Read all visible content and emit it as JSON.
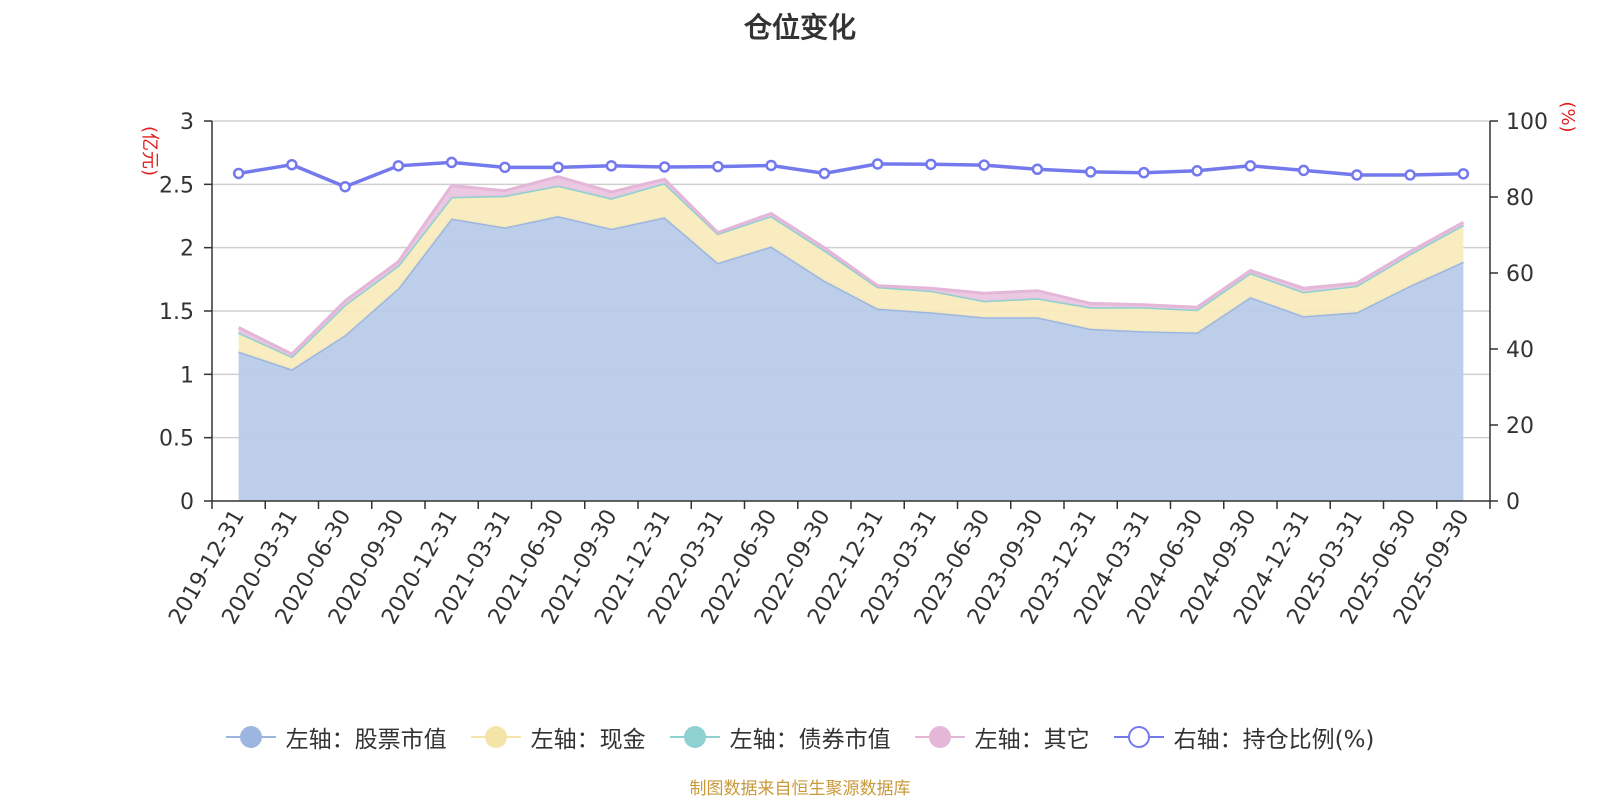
{
  "title": "仓位变化",
  "footer": "制图数据来自恒生聚源数据库",
  "chart_data": {
    "type": "area",
    "x": [
      "2019-12-31",
      "2020-03-31",
      "2020-06-30",
      "2020-09-30",
      "2020-12-31",
      "2021-03-31",
      "2021-06-30",
      "2021-09-30",
      "2021-12-31",
      "2022-03-31",
      "2022-06-30",
      "2022-09-30",
      "2022-12-31",
      "2023-03-31",
      "2023-06-30",
      "2023-09-30",
      "2023-12-31",
      "2024-03-31",
      "2024-06-30",
      "2024-09-30",
      "2024-12-31",
      "2025-03-31",
      "2025-06-30",
      "2025-09-30"
    ],
    "y_left_unit": "(亿元)",
    "y_right_unit": "(%)",
    "y_left_ticks": [
      "0",
      "0.5",
      "1",
      "1.5",
      "2",
      "2.5",
      "3"
    ],
    "y_right_ticks": [
      "0",
      "20",
      "40",
      "60",
      "80",
      "100"
    ],
    "ylim_left": [
      0,
      3
    ],
    "ylim_right": [
      0,
      100
    ],
    "grid": true,
    "legend_position": "bottom",
    "series": [
      {
        "name": "左轴：股票市值",
        "axis": "left",
        "kind": "stacked-area",
        "color": "#9db6df",
        "fill": "#b8cbe9",
        "values": [
          1.18,
          1.04,
          1.31,
          1.68,
          2.23,
          2.16,
          2.25,
          2.15,
          2.24,
          1.88,
          2.01,
          1.74,
          1.52,
          1.49,
          1.45,
          1.45,
          1.36,
          1.34,
          1.33,
          1.61,
          1.46,
          1.49,
          1.7,
          1.89
        ]
      },
      {
        "name": "左轴：现金",
        "axis": "left",
        "kind": "stacked-area",
        "color": "#f5e4a8",
        "fill": "#f8ebbd",
        "values": [
          0.15,
          0.1,
          0.24,
          0.18,
          0.17,
          0.25,
          0.24,
          0.24,
          0.27,
          0.23,
          0.24,
          0.24,
          0.17,
          0.17,
          0.13,
          0.15,
          0.17,
          0.19,
          0.18,
          0.19,
          0.19,
          0.21,
          0.25,
          0.29
        ]
      },
      {
        "name": "左轴：债券市值",
        "axis": "left",
        "kind": "stacked-area",
        "color": "#8fd0d1",
        "fill": "#a8dadb",
        "values": [
          0,
          0,
          0,
          0,
          0,
          0,
          0,
          0,
          0,
          0,
          0,
          0,
          0,
          0,
          0,
          0,
          0,
          0,
          0,
          0,
          0,
          0,
          0,
          0
        ]
      },
      {
        "name": "左轴：其它",
        "axis": "left",
        "kind": "stacked-area",
        "color": "#e4b6d8",
        "fill": "#ebc6e0",
        "values": [
          0.04,
          0.02,
          0.03,
          0.03,
          0.09,
          0.04,
          0.07,
          0.05,
          0.03,
          0.01,
          0.02,
          0.02,
          0.01,
          0.02,
          0.06,
          0.06,
          0.03,
          0.02,
          0.02,
          0.02,
          0.03,
          0.02,
          0.02,
          0.02
        ]
      },
      {
        "name": "右轴：持仓比例(%)",
        "axis": "right",
        "kind": "line",
        "color": "#7479ee",
        "values": [
          86.2,
          88.5,
          82.7,
          88.2,
          89.1,
          87.8,
          87.8,
          88.2,
          87.9,
          88.0,
          88.3,
          86.2,
          88.7,
          88.6,
          88.4,
          87.3,
          86.6,
          86.4,
          86.9,
          88.2,
          87.0,
          85.8,
          85.8,
          86.1
        ]
      }
    ]
  }
}
